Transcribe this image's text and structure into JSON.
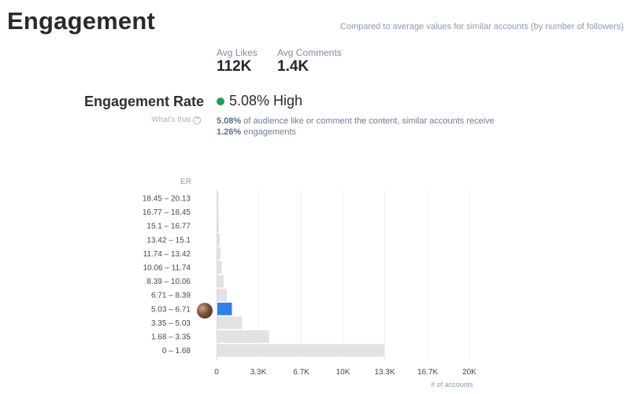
{
  "header": {
    "title": "Engagement",
    "subtitle": "Compared to average values for similar accounts (by number of followers)"
  },
  "stats": {
    "avg_likes_label": "Avg Likes",
    "avg_likes_value": "112K",
    "avg_comments_label": "Avg Comments",
    "avg_comments_value": "1.4K"
  },
  "engagement_rate": {
    "label": "Engagement Rate",
    "value": "5.08% High",
    "status_color": "#1e9e5a",
    "whats_that": "What's that",
    "desc_strong_1": "5.08%",
    "desc_text_1": " of audience like or comment the content, similar accounts receive",
    "desc_strong_2": "1.26%",
    "desc_text_2": " engagements"
  },
  "chart_data": {
    "type": "bar",
    "orientation": "horizontal",
    "ylabel": "ER",
    "xlabel": "# of accounts",
    "categories": [
      "18.45 – 20.13",
      "16.77 – 18.45",
      "15.1 – 16.77",
      "13.42 – 15.1",
      "11.74 – 13.42",
      "10.06 – 11.74",
      "8.39 – 10.06",
      "6.71 – 8.39",
      "5.03 – 6.71",
      "3.35 – 5.03",
      "1.68 – 3.35",
      "0 – 1.68"
    ],
    "values": [
      50,
      60,
      120,
      200,
      250,
      350,
      500,
      750,
      1150,
      1950,
      4100,
      13200
    ],
    "highlight_index": 8,
    "highlight_color": "#2f80ed",
    "bar_color": "#e2e2e2",
    "xlim": [
      0,
      20000
    ],
    "xticks": [
      0,
      3300,
      6700,
      10000,
      13300,
      16700,
      20000
    ],
    "xtick_labels": [
      "0",
      "3.3K",
      "6.7K",
      "10K",
      "13.3K",
      "16.7K",
      "20K"
    ],
    "grid": true
  }
}
